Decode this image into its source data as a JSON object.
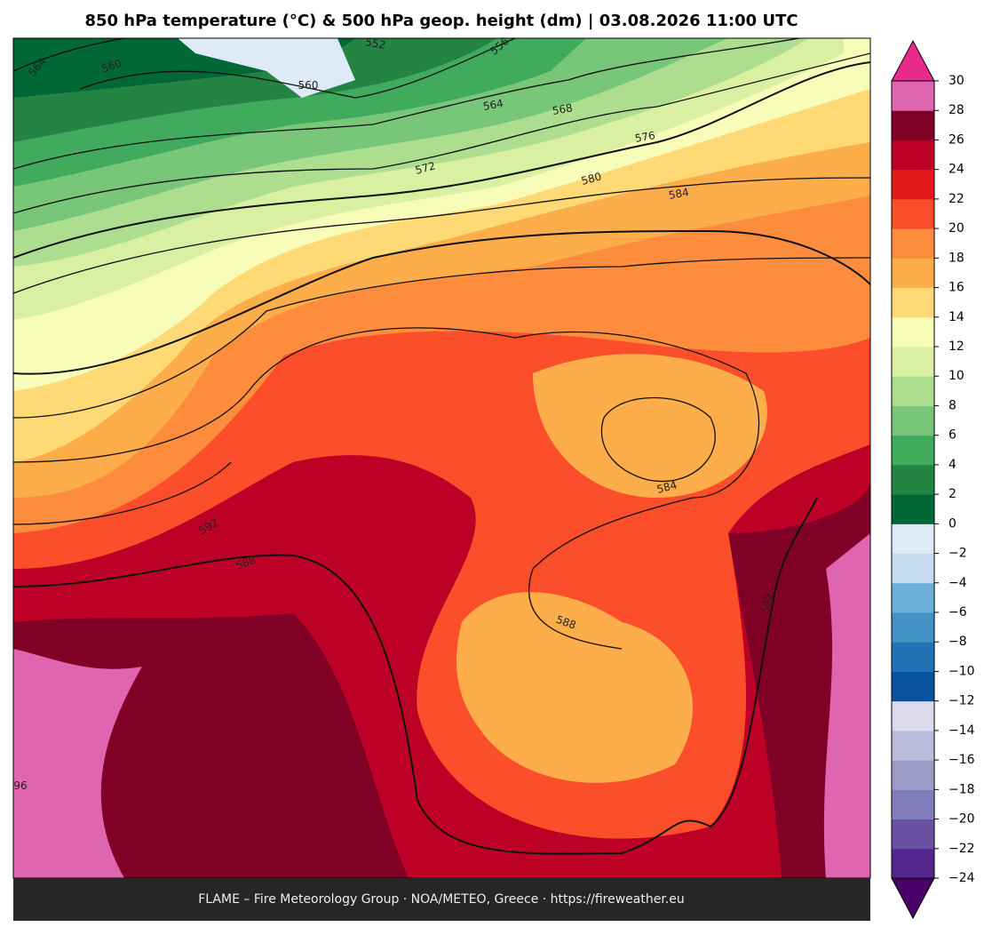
{
  "header": {
    "title": "850 hPa temperature (°C) & 500 hPa geop. height (dm)  |  03.08.2026 11:00 UTC"
  },
  "footer": {
    "text": "FLAME – Fire Meteorology Group · NOA/METEO, Greece · https://fireweather.eu"
  },
  "contour_labels": [
    564,
    560,
    552,
    556,
    560,
    564,
    568,
    572,
    576,
    580,
    584,
    584,
    588,
    592,
    588,
    592,
    96
  ],
  "colorbar": {
    "ticks": [
      {
        "value": -24,
        "label": "−24"
      },
      {
        "value": -22,
        "label": "−22"
      },
      {
        "value": -20,
        "label": "−20"
      },
      {
        "value": -18,
        "label": "−18"
      },
      {
        "value": -16,
        "label": "−16"
      },
      {
        "value": -14,
        "label": "−14"
      },
      {
        "value": -12,
        "label": "−12"
      },
      {
        "value": -10,
        "label": "−10"
      },
      {
        "value": -8,
        "label": "−8"
      },
      {
        "value": -6,
        "label": "−6"
      },
      {
        "value": -4,
        "label": "−4"
      },
      {
        "value": -2,
        "label": "−2"
      },
      0,
      2,
      4,
      6,
      8,
      10,
      12,
      14,
      16,
      18,
      20,
      22,
      24,
      26,
      28,
      30
    ],
    "colors": [
      "#54278f",
      "#6a51a3",
      "#807dba",
      "#9e9ac8",
      "#bcbddc",
      "#dadaeb",
      "#08519c",
      "#2171b5",
      "#4292c6",
      "#6baed6",
      "#c6dbef",
      "#deebf7",
      "#006837",
      "#238443",
      "#41ab5d",
      "#78c679",
      "#addd8e",
      "#d9f0a3",
      "#f7fcb9",
      "#fed976",
      "#fdae4b",
      "#fd8d3c",
      "#fc4e2a",
      "#e31a1c",
      "#bd0026",
      "#800026",
      "#df65b0"
    ],
    "extend_colors": {
      "min": "#49006a",
      "max": "#e7298a"
    }
  }
}
